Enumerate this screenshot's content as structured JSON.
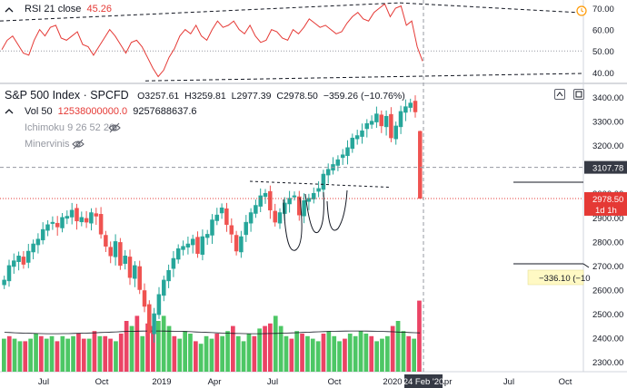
{
  "rsi_panel": {
    "name": "RSI",
    "params": "21 close",
    "value": "45.26",
    "value_color": "#e53935",
    "axis_ticks": [
      "70.00",
      "60.00",
      "50.00",
      "40.00"
    ]
  },
  "header": {
    "symbol": "S&P 500 Index · SPCFD",
    "open": "O3257.61",
    "high": "H3259.81",
    "low": "L2977.39",
    "close": "C2978.50",
    "change": "−359.26 (−10.76%)",
    "change_color": "#e53935"
  },
  "indicators": [
    {
      "name": "Vol",
      "params": "50",
      "values": [
        "12538000000.0",
        "9257688637.6"
      ],
      "value_colors": [
        "#e53935",
        "#131722"
      ]
    },
    {
      "name": "Ichimoku",
      "params": "9 26 52 26"
    },
    {
      "name": "Minervinis",
      "params": ""
    }
  ],
  "price_axis": {
    "ticks": [
      "3400.00",
      "3300.00",
      "3200.00",
      "3100.00",
      "3000.00",
      "2900.00",
      "2800.00",
      "2700.00",
      "2600.00",
      "2500.00",
      "2400.00",
      "2300.00"
    ],
    "crosshair_price": "3107.78",
    "last_price": "2978.50",
    "last_price_color": "#e53935",
    "timer": "1d 1h"
  },
  "time_axis": {
    "ticks": [
      "Jul",
      "Oct",
      "2019",
      "Apr",
      "Jul",
      "Oct",
      "2020",
      "Apr",
      "Jul",
      "Oct"
    ],
    "crosshair_date": "24 Feb '20"
  },
  "annotation": {
    "measure_label": "−336.10 (−10"
  },
  "chart_data": {
    "type": "candlestick",
    "title": "S&P 500 Index · SPCFD",
    "period": "weekly",
    "ylim": [
      2300,
      3420
    ],
    "last_candle": {
      "open": 3257.61,
      "high": 3259.81,
      "low": 2977.39,
      "close": 2978.5
    },
    "horizontal_lines": [
      3107.78,
      2978.5
    ],
    "rsi": {
      "ylim": [
        35,
        73
      ],
      "last": 45.26
    },
    "volume_sma": "9257688637.6",
    "colors": {
      "up": "#26a69a",
      "down": "#ef5350",
      "volume_up": "#2ebd4a",
      "volume_down": "#e8234a"
    }
  }
}
